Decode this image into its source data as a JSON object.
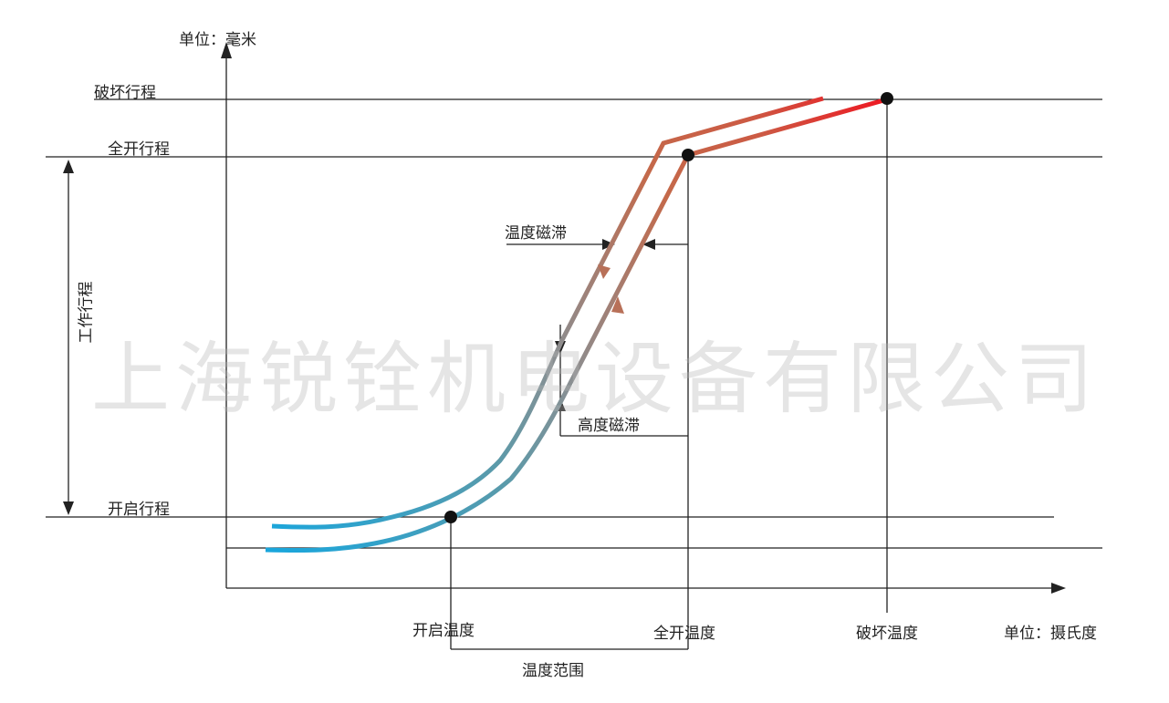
{
  "axes": {
    "y_unit": "单位：毫米",
    "x_unit": "单位：摄氏度"
  },
  "levels": {
    "damage_stroke": "破坏行程",
    "full_open_stroke": "全开行程",
    "open_stroke": "开启行程",
    "working_stroke": "工作行程"
  },
  "temperatures": {
    "open_temp": "开启温度",
    "full_open_temp": "全开温度",
    "damage_temp": "破坏温度",
    "temp_range": "温度范围"
  },
  "hysteresis": {
    "temperature": "温度磁滞",
    "height": "高度磁滞"
  },
  "watermark": "上海锐铨机电设备有限公司",
  "colors": {
    "cold": "#1aa6dc",
    "mid": "#8a8f92",
    "warm": "#c4694a",
    "hot": "#ec1c24"
  }
}
